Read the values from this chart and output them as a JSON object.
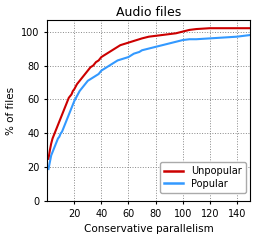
{
  "title": "Audio files",
  "xlabel": "Conservative parallelism",
  "ylabel": "% of files",
  "xlim": [
    0,
    150
  ],
  "ylim": [
    0,
    107
  ],
  "xticks": [
    20,
    40,
    60,
    80,
    100,
    120,
    140
  ],
  "yticks": [
    0,
    20,
    40,
    60,
    80,
    100
  ],
  "unpopular_color": "#cc0000",
  "popular_color": "#3399ff",
  "legend_labels": [
    "Unpopular",
    "Popular"
  ],
  "unpopular_x": [
    1,
    2,
    3,
    4,
    5,
    6,
    7,
    8,
    9,
    10,
    11,
    12,
    13,
    14,
    15,
    16,
    17,
    18,
    19,
    20,
    22,
    24,
    26,
    28,
    30,
    32,
    34,
    36,
    38,
    40,
    42,
    44,
    46,
    48,
    50,
    52,
    54,
    56,
    58,
    60,
    62,
    64,
    66,
    68,
    70,
    75,
    80,
    85,
    90,
    95,
    100,
    105,
    110,
    120,
    130,
    140,
    150
  ],
  "unpopular_y": [
    25,
    30,
    34,
    37,
    39,
    41,
    43,
    45,
    47,
    49,
    51,
    53,
    55,
    57,
    59,
    61,
    62,
    63,
    65,
    66,
    69,
    71,
    73,
    75,
    77,
    79,
    80,
    82,
    83,
    85,
    86,
    87,
    88,
    89,
    90,
    91,
    92,
    92.5,
    93,
    93.5,
    94,
    94.5,
    95,
    95.5,
    96,
    97,
    97.5,
    98,
    98.5,
    99,
    100,
    101,
    101.5,
    102,
    102,
    102,
    102
  ],
  "popular_x": [
    1,
    2,
    3,
    4,
    5,
    6,
    7,
    8,
    9,
    10,
    11,
    12,
    13,
    14,
    15,
    16,
    17,
    18,
    19,
    20,
    22,
    24,
    26,
    28,
    30,
    32,
    34,
    36,
    38,
    40,
    42,
    44,
    46,
    48,
    50,
    52,
    54,
    56,
    58,
    60,
    62,
    64,
    66,
    68,
    70,
    75,
    80,
    85,
    90,
    95,
    100,
    105,
    110,
    120,
    130,
    140,
    150
  ],
  "popular_y": [
    19,
    23,
    27,
    29,
    31,
    33,
    35,
    37,
    38,
    40,
    41,
    43,
    45,
    47,
    49,
    51,
    53,
    55,
    57,
    59,
    62,
    65,
    67,
    69,
    71,
    72,
    73,
    74,
    75,
    77,
    78,
    79,
    80,
    81,
    82,
    83,
    83.5,
    84,
    84.5,
    85,
    86,
    87,
    87.5,
    88,
    89,
    90,
    91,
    92,
    93,
    94,
    95,
    95.5,
    95.5,
    96,
    96.5,
    97,
    98
  ]
}
